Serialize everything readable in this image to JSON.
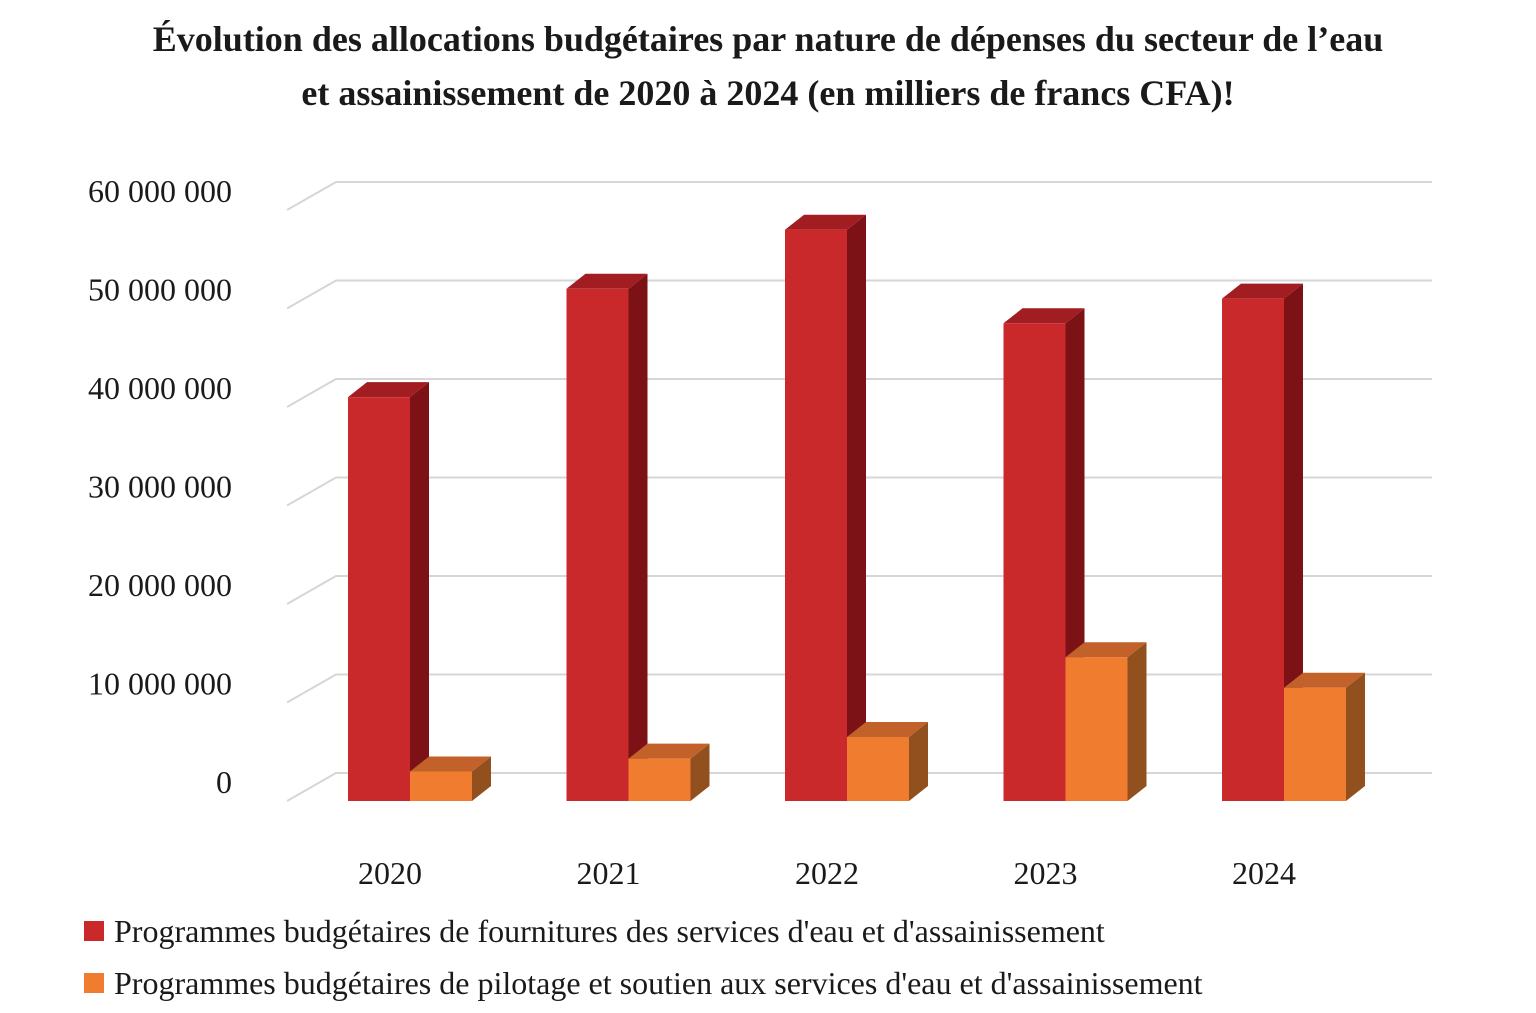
{
  "chart_data": {
    "type": "bar",
    "title_lines": [
      "Évolution des allocations budgétaires par nature de dépenses du secteur de l’eau",
      "et assainissement de 2020 à 2024 (en milliers de francs CFA)!"
    ],
    "categories": [
      "2020",
      "2021",
      "2022",
      "2023",
      "2024"
    ],
    "series": [
      {
        "name": "Programmes budgétaires de fournitures des services d'eau et d'assainissement",
        "values": [
          41000000,
          52000000,
          58000000,
          48500000,
          51000000
        ],
        "color": "#c9292b",
        "side_color": "#7d1216",
        "top_color": "#a11d21"
      },
      {
        "name": "Programmes budgétaires de pilotage et soutien aux services d'eau et d'assainissement",
        "values": [
          3000000,
          4300000,
          6500000,
          14600000,
          11500000
        ],
        "color": "#f07d2f",
        "side_color": "#93501f",
        "top_color": "#c2612a"
      }
    ],
    "y_ticks": [
      "0",
      "10 000 000",
      "20 000 000",
      "30 000 000",
      "40 000 000",
      "50 000 000",
      "60 000 000"
    ],
    "ylim": [
      0,
      60000000
    ],
    "grid": true,
    "legend_position": "bottom",
    "three_d": true
  }
}
